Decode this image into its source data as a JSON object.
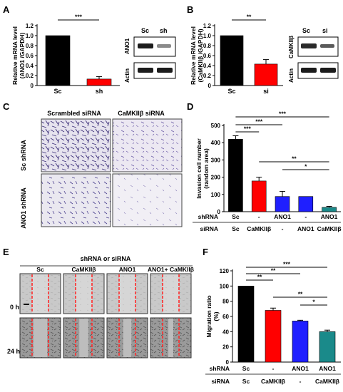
{
  "panels": {
    "A": {
      "letter": "A",
      "blot_protein": "ANO1",
      "blot_loading": "Actin",
      "blot_lanes": [
        "Sc",
        "sh"
      ]
    },
    "B": {
      "letter": "B",
      "blot_protein": "CaMKIIβ",
      "blot_loading": "Actin",
      "blot_lanes": [
        "Sc",
        "si"
      ]
    },
    "C": {
      "letter": "C",
      "col_labels": [
        "Scrambled siRNA",
        "CaMKIIβ siRNA"
      ],
      "row_labels": [
        "Sc shRNA",
        "ANO1 shRNA"
      ]
    },
    "D": {
      "letter": "D",
      "shrna_label": "shRNA",
      "sirna_label": "siRNA",
      "shrna_values": [
        "Sc",
        "-",
        "ANO1",
        "-",
        "ANO1"
      ],
      "sirna_values": [
        "Sc",
        "CaMKIIβ",
        "-",
        "ANO1",
        "CaMKIIβ"
      ]
    },
    "E": {
      "letter": "E",
      "header": "shRNA or siRNA",
      "col_labels": [
        "Sc",
        "CaMKIIβ",
        "ANO1",
        "ANO1+ CaMKIIβ"
      ],
      "row_labels": [
        "0 h",
        "24 h"
      ]
    },
    "F": {
      "letter": "F",
      "shrna_label": "shRNA",
      "sirna_label": "siRNA",
      "shrna_values": [
        "Sc",
        "-",
        "ANO1",
        "ANO1"
      ],
      "sirna_values": [
        "Sc",
        "CaMKIIβ",
        "-",
        "CaMKIIβ"
      ]
    }
  },
  "colors": {
    "black": "#000000",
    "red": "#ff0000",
    "blue": "#1f1fff",
    "teal": "#1a8a8a",
    "scratch_line": "#ff2a2a"
  },
  "chart_data": [
    {
      "panel": "A",
      "type": "bar",
      "categories": [
        "Sc",
        "sh"
      ],
      "values": [
        1.0,
        0.13
      ],
      "errors": [
        0,
        0.05
      ],
      "ylabel": "Relative mRNA level (ANO1 /GAPDH)",
      "ylim": [
        0,
        1.2
      ],
      "yticks": [
        "0",
        "0.2",
        "0.4",
        "0.6",
        "0.8",
        "1.0",
        "1.2"
      ],
      "significance": [
        {
          "between": [
            0,
            1
          ],
          "label": "***"
        }
      ]
    },
    {
      "panel": "B",
      "type": "bar",
      "categories": [
        "Sc",
        "si"
      ],
      "values": [
        1.0,
        0.43
      ],
      "errors": [
        0,
        0.09
      ],
      "ylabel": "Relative mRNA level (CaMKIIβ /GAPDH)",
      "ylim": [
        0,
        1.2
      ],
      "yticks": [
        "0",
        "0.2",
        "0.4",
        "0.6",
        "0.8",
        "1.0",
        "1.2"
      ],
      "significance": [
        {
          "between": [
            0,
            1
          ],
          "label": "**"
        }
      ]
    },
    {
      "panel": "D",
      "type": "bar",
      "categories": [
        "1",
        "2",
        "3",
        "4",
        "5"
      ],
      "values": [
        420,
        178,
        88,
        88,
        25
      ],
      "errors": [
        20,
        22,
        30,
        0,
        6
      ],
      "ylabel": "Invasion cell number (random area)",
      "ylim": [
        0,
        500
      ],
      "yticks": [
        "0",
        "100",
        "200",
        "300",
        "400",
        "500"
      ],
      "significance": [
        {
          "between": [
            0,
            1
          ],
          "label": "***"
        },
        {
          "between": [
            0,
            2
          ],
          "label": "***"
        },
        {
          "between": [
            0,
            4
          ],
          "label": "***"
        },
        {
          "between": [
            1,
            4
          ],
          "label": "**"
        },
        {
          "between": [
            2,
            4
          ],
          "label": "*"
        }
      ]
    },
    {
      "panel": "F",
      "type": "bar",
      "categories": [
        "1",
        "2",
        "3",
        "4"
      ],
      "values": [
        100,
        68,
        54,
        40
      ],
      "errors": [
        0,
        3,
        1,
        2
      ],
      "ylabel": "Migration ratio (%)",
      "ylim": [
        0,
        120
      ],
      "yticks": [
        "0",
        "20",
        "40",
        "60",
        "80",
        "100",
        "120"
      ],
      "significance": [
        {
          "between": [
            0,
            1
          ],
          "label": "**"
        },
        {
          "between": [
            0,
            2
          ],
          "label": "**"
        },
        {
          "between": [
            0,
            3
          ],
          "label": "***"
        },
        {
          "between": [
            1,
            3
          ],
          "label": "**"
        },
        {
          "between": [
            2,
            3
          ],
          "label": "*"
        }
      ]
    }
  ]
}
